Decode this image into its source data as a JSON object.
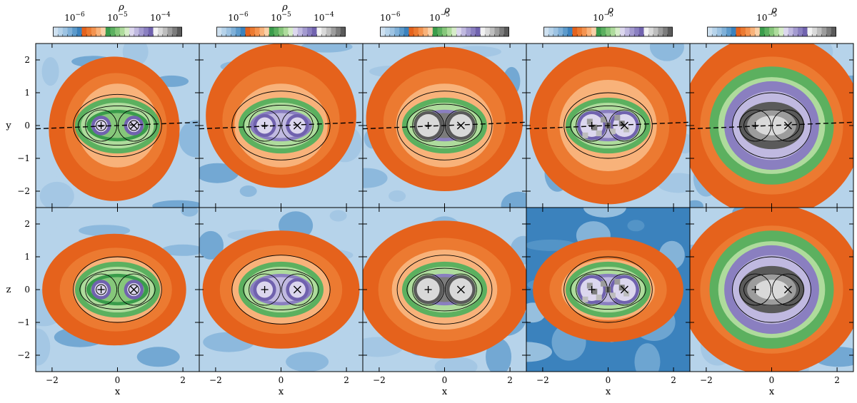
{
  "palette": {
    "light_blue": [
      "#cfe1f0",
      "#b6d3ea",
      "#9dc3e2",
      "#7fb0d8",
      "#5c9acb",
      "#3b82bd"
    ],
    "orange": [
      "#f9d0a8",
      "#f8b27a",
      "#f4934f",
      "#ec7a31",
      "#e5621c"
    ],
    "green": [
      "#d6ecc8",
      "#aedb9c",
      "#86c77a",
      "#5cb05f",
      "#3a9c4b"
    ],
    "purple": [
      "#dcd7ee",
      "#c0b9e0",
      "#a39acf",
      "#8a7fc0",
      "#7062ae"
    ],
    "gray": [
      "#f2f2f2",
      "#d9d9d9",
      "#bdbdbd",
      "#9c9c9c",
      "#7c7c7c",
      "#5a5a5a"
    ]
  },
  "chart_data": {
    "type": "heatmap",
    "quantity_symbol": "ρ",
    "layout": {
      "columns": 5,
      "rows": 2
    },
    "row_ylabels": [
      "y",
      "z"
    ],
    "xlabel": "x",
    "xlim": [
      -2.5,
      2.5
    ],
    "ylim": [
      -2.5,
      2.5
    ],
    "xticks": [
      -2,
      0,
      2
    ],
    "yticks": [
      -2,
      -1,
      0,
      1,
      2
    ],
    "xtick_labels": [
      "−2",
      "0",
      "2"
    ],
    "ytick_labels": [
      "−2",
      "−1",
      "0",
      "1",
      "2"
    ],
    "point_markers": [
      {
        "x": -0.5,
        "y": 0,
        "symbol": "+"
      },
      {
        "x": 0.5,
        "y": 0,
        "symbol": "×"
      }
    ],
    "colorbars": [
      {
        "labels": [
          {
            "base": "10",
            "exp": "−6",
            "value": -6
          },
          {
            "base": "10",
            "exp": "−5",
            "value": -5
          },
          {
            "base": "10",
            "exp": "−4",
            "value": -4
          }
        ],
        "range": [
          -6.5,
          -3.5
        ]
      },
      {
        "labels": [
          {
            "base": "10",
            "exp": "−6",
            "value": -6
          },
          {
            "base": "10",
            "exp": "−5",
            "value": -5
          },
          {
            "base": "10",
            "exp": "−4",
            "value": -4
          }
        ],
        "range": [
          -6.5,
          -3.5
        ]
      },
      {
        "labels": [
          {
            "base": "10",
            "exp": "−6",
            "value": -6
          },
          {
            "base": "10",
            "exp": "−5",
            "value": -5
          }
        ],
        "range": [
          -6.2,
          -3.6
        ]
      },
      {
        "labels": [
          {
            "base": "10",
            "exp": "−5",
            "value": -5
          }
        ],
        "range": [
          -6.2,
          -3.6
        ]
      },
      {
        "labels": [
          {
            "base": "10",
            "exp": "−5",
            "value": -5
          }
        ],
        "range": [
          -6.2,
          -3.6
        ]
      }
    ],
    "panels": [
      {
        "column": 0,
        "row": 0,
        "orbit_ellipses": [
          [
            1.35,
            0.95
          ],
          [
            1.2,
            0.6
          ]
        ],
        "blob": {
          "cx": -0.1,
          "cy": -0.1,
          "rx": 2.0,
          "ry": 2.2
        },
        "core": "green",
        "dashed_axis": true,
        "marker_style": "circled",
        "circle_radius": 0.2
      },
      {
        "column": 1,
        "row": 0,
        "orbit_ellipses": [
          [
            1.5,
            1.05
          ],
          [
            1.15,
            0.62
          ]
        ],
        "blob": {
          "cx": 0.0,
          "cy": 0.3,
          "rx": 2.3,
          "ry": 2.2
        },
        "core": "purple",
        "dashed_axis": true,
        "marker_style": "plain",
        "circle_radius": 0.25
      },
      {
        "column": 2,
        "row": 0,
        "orbit_ellipses": [
          [
            1.45,
            1.05
          ],
          [
            1.15,
            0.65
          ]
        ],
        "blob": {
          "cx": 0.0,
          "cy": 0.2,
          "rx": 2.4,
          "ry": 2.2
        },
        "core": "gray",
        "dashed_axis": true,
        "marker_style": "plain",
        "circle_radius": 0.35
      },
      {
        "column": 3,
        "row": 0,
        "orbit_ellipses": [
          [
            1.35,
            1.0
          ],
          [
            1.15,
            0.6
          ]
        ],
        "blob": {
          "cx": 0.0,
          "cy": 0.0,
          "rx": 2.4,
          "ry": 2.4
        },
        "core": "purple",
        "dashed_axis": true,
        "marker_style": "plain",
        "circle_radius": 0.35
      },
      {
        "column": 4,
        "row": 0,
        "orbit_ellipses": [
          [
            1.2,
            1.0
          ],
          [
            0.85,
            0.48
          ]
        ],
        "blob": {
          "cx": 0.0,
          "cy": 0.0,
          "rx": 2.8,
          "ry": 2.8
        },
        "core": "dark",
        "dashed_axis": true,
        "marker_style": "plain",
        "circle_radius": 0.25
      },
      {
        "column": 0,
        "row": 1,
        "orbit_ellipses": [
          [
            1.35,
            1.0
          ],
          [
            1.15,
            0.6
          ]
        ],
        "blob": {
          "cx": -0.1,
          "cy": 0.0,
          "rx": 2.2,
          "ry": 1.7
        },
        "core": "green",
        "dashed_axis": false,
        "marker_style": "circled",
        "circle_radius": 0.2
      },
      {
        "column": 1,
        "row": 1,
        "orbit_ellipses": [
          [
            1.5,
            1.05
          ],
          [
            1.15,
            0.62
          ]
        ],
        "blob": {
          "cx": 0.0,
          "cy": 0.0,
          "rx": 2.4,
          "ry": 1.8
        },
        "core": "purple",
        "dashed_axis": false,
        "marker_style": "plain",
        "circle_radius": 0.25
      },
      {
        "column": 2,
        "row": 1,
        "orbit_ellipses": [
          [
            1.45,
            1.05
          ],
          [
            1.15,
            0.65
          ]
        ],
        "blob": {
          "cx": 0.0,
          "cy": 0.0,
          "rx": 2.6,
          "ry": 2.1
        },
        "core": "gray",
        "dashed_axis": false,
        "marker_style": "plain",
        "circle_radius": 0.35
      },
      {
        "column": 3,
        "row": 1,
        "orbit_ellipses": [
          [
            1.35,
            1.0
          ],
          [
            1.15,
            0.6
          ]
        ],
        "blob": {
          "cx": 0.0,
          "cy": 0.0,
          "rx": 2.3,
          "ry": 1.6
        },
        "core": "purple",
        "dashed_axis": false,
        "marker_style": "plain",
        "circle_radius": 0.35
      },
      {
        "column": 4,
        "row": 1,
        "orbit_ellipses": [
          [
            1.2,
            1.0
          ],
          [
            0.85,
            0.48
          ]
        ],
        "blob": {
          "cx": 0.0,
          "cy": 0.0,
          "rx": 2.8,
          "ry": 2.6
        },
        "core": "dark",
        "dashed_axis": false,
        "marker_style": "plain",
        "circle_radius": 0.25
      }
    ]
  }
}
